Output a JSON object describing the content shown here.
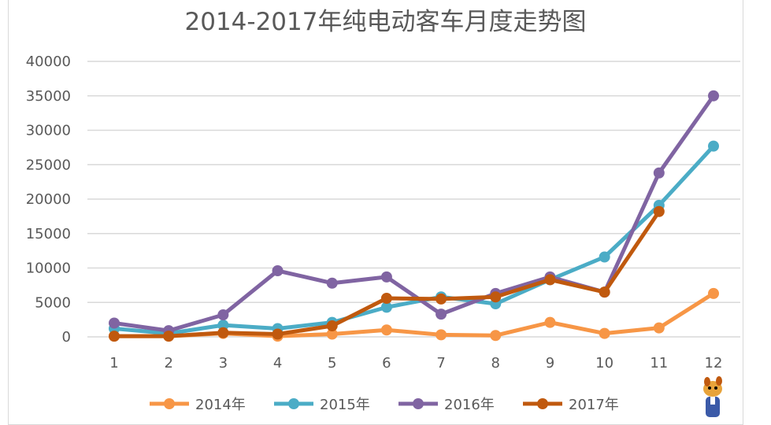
{
  "chart_data": {
    "type": "line",
    "title": "2014-2017年纯电动客车月度走势图",
    "xlabel": "",
    "ylabel": "",
    "categories": [
      "1",
      "2",
      "3",
      "4",
      "5",
      "6",
      "7",
      "8",
      "9",
      "10",
      "11",
      "12"
    ],
    "ylim": [
      0,
      40000
    ],
    "yticks": [
      "0",
      "5000",
      "10000",
      "15000",
      "20000",
      "25000",
      "30000",
      "35000",
      "40000"
    ],
    "grid": true,
    "legend_position": "bottom",
    "series": [
      {
        "name": "2014年",
        "color": "#f79646",
        "values": [
          100,
          100,
          500,
          100,
          400,
          1000,
          300,
          200,
          2100,
          500,
          1300,
          6300
        ]
      },
      {
        "name": "2015年",
        "color": "#4bacc6",
        "values": [
          1200,
          500,
          1700,
          1200,
          2100,
          4300,
          5800,
          4800,
          8300,
          11600,
          19100,
          27700
        ]
      },
      {
        "name": "2016年",
        "color": "#8064a2",
        "values": [
          2000,
          900,
          3200,
          9600,
          7800,
          8700,
          3300,
          6300,
          8700,
          6500,
          23800,
          35000
        ]
      },
      {
        "name": "2017年",
        "color": "#c0590e",
        "values": [
          100,
          100,
          600,
          400,
          1600,
          5600,
          5500,
          5800,
          8300,
          6500,
          18200,
          null
        ]
      }
    ]
  }
}
